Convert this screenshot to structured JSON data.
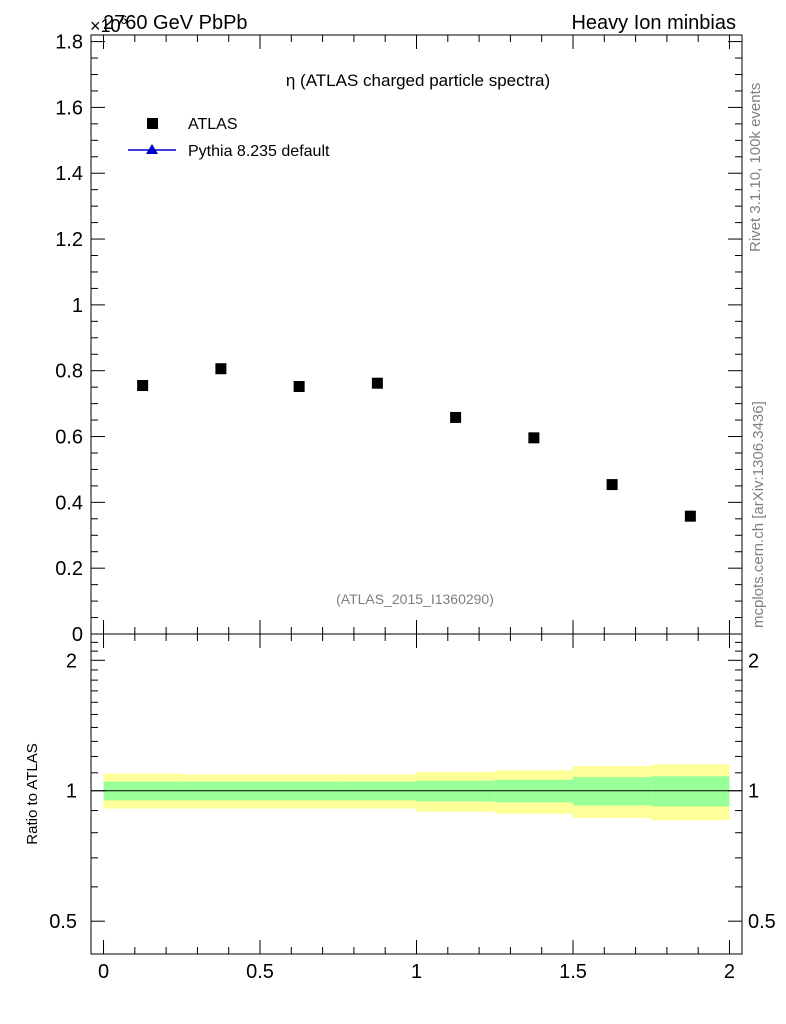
{
  "header": {
    "left": "2760 GeV PbPb",
    "right": "Heavy Ion minbias",
    "exponent": "×10^6"
  },
  "side_labels": {
    "rivet": "Rivet 3.1.10,  100k events",
    "mcplots": "mcplots.cern.ch [arXiv:1306.3436]"
  },
  "chart_data": [
    {
      "type": "scatter",
      "title": "η (ATLAS charged particle spectra)",
      "watermark": "(ATLAS_2015_I1360290)",
      "y_multiplier": "×10^6",
      "xlim": [
        -0.04,
        2.04
      ],
      "ylim": [
        0,
        1.82
      ],
      "y_ticks": [
        0,
        0.2,
        0.4,
        0.6,
        0.8,
        1,
        1.2,
        1.4,
        1.6,
        1.8
      ],
      "y_tick_labels": [
        "0",
        "0.2",
        "0.4",
        "0.6",
        "0.8",
        "1",
        "1.2",
        "1.4",
        "1.6",
        "1.8"
      ],
      "legend": {
        "position": "top-left",
        "entries": [
          {
            "label": "ATLAS",
            "marker": "square",
            "color": "#000000"
          },
          {
            "label": "Pythia 8.235 default",
            "marker": "triangle",
            "color": "#0000cc"
          }
        ]
      },
      "series": [
        {
          "name": "ATLAS",
          "x": [
            0.125,
            0.375,
            0.625,
            0.875,
            1.125,
            1.375,
            1.625,
            1.875
          ],
          "y": [
            0.755,
            0.806,
            0.752,
            0.762,
            0.658,
            0.596,
            0.454,
            0.358
          ]
        }
      ]
    },
    {
      "type": "area",
      "ylabel": "Ratio to ATLAS",
      "xlim": [
        -0.04,
        2.04
      ],
      "ylim": [
        0.42,
        2.3
      ],
      "x_ticks": [
        0,
        0.5,
        1,
        1.5,
        2
      ],
      "x_tick_labels": [
        "0",
        "0.5",
        "1",
        "1.5",
        "2"
      ],
      "y_ticks": [
        0.5,
        1,
        2
      ],
      "y_tick_labels": [
        "0.5",
        "1",
        "2"
      ],
      "colors": {
        "stat_band": "#99ff99",
        "total_band": "#ffff99",
        "ref_line": "#000000"
      },
      "bins": [
        {
          "lo": 0.0,
          "hi": 0.25,
          "stat": [
            0.95,
            1.05
          ],
          "total": [
            0.91,
            1.095
          ]
        },
        {
          "lo": 0.25,
          "hi": 0.5,
          "stat": [
            0.95,
            1.05
          ],
          "total": [
            0.91,
            1.09
          ]
        },
        {
          "lo": 0.5,
          "hi": 0.75,
          "stat": [
            0.95,
            1.05
          ],
          "total": [
            0.91,
            1.09
          ]
        },
        {
          "lo": 0.75,
          "hi": 1.0,
          "stat": [
            0.95,
            1.05
          ],
          "total": [
            0.91,
            1.09
          ]
        },
        {
          "lo": 1.0,
          "hi": 1.25,
          "stat": [
            0.945,
            1.055
          ],
          "total": [
            0.895,
            1.105
          ]
        },
        {
          "lo": 1.25,
          "hi": 1.5,
          "stat": [
            0.94,
            1.06
          ],
          "total": [
            0.885,
            1.115
          ]
        },
        {
          "lo": 1.5,
          "hi": 1.75,
          "stat": [
            0.925,
            1.075
          ],
          "total": [
            0.865,
            1.14
          ]
        },
        {
          "lo": 1.75,
          "hi": 2.0,
          "stat": [
            0.92,
            1.08
          ],
          "total": [
            0.855,
            1.15
          ]
        }
      ]
    }
  ]
}
